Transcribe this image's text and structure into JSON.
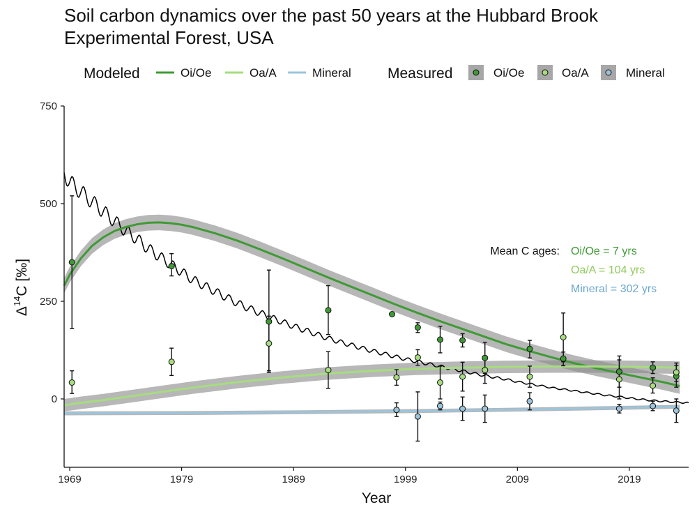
{
  "chart_data": {
    "type": "line",
    "title_line1": "Soil carbon dynamics over the past 50 years at the Hubbard Brook",
    "title_line2": "Experimental Forest, USA",
    "xlabel": "Year",
    "ylabel_main": "Δ",
    "ylabel_sup": "14",
    "ylabel_rest": "C [‰]",
    "xlim": [
      1968.5,
      2024.3
    ],
    "ylim": [
      -175,
      750
    ],
    "x_ticks": [
      1969,
      1979,
      1989,
      1999,
      2009,
      2019
    ],
    "y_ticks": [
      0,
      250,
      500,
      750
    ],
    "grid": false,
    "legend": {
      "placement": "top",
      "modeled_title": "Modeled",
      "measured_title": "Measured",
      "items": [
        "Oi/Oe",
        "Oa/A",
        "Mineral"
      ]
    },
    "colors": {
      "Oi/Oe": "#3f9a35",
      "Oa/A": "#a6dd7f",
      "Mineral": "#9cc4dc",
      "band": "#8a8a8a",
      "atmosphere": "#000000",
      "anno_label": "#111111",
      "anno_oioe": "#3f9a35",
      "anno_oaa": "#8fcc5c",
      "anno_mineral": "#6ea8cf"
    },
    "annotation": {
      "label": "Mean C ages:",
      "oioe": "Oi/Oe = 7 yrs",
      "oaa": "Oa/A = 104 yrs",
      "mineral": "Mineral = 302 yrs"
    },
    "atmosphere": {
      "x": [
        1968.5,
        1969,
        1970,
        1971,
        1972,
        1973,
        1974,
        1975,
        1976,
        1977,
        1978,
        1979,
        1980,
        1981,
        1982,
        1983,
        1984,
        1985,
        1986,
        1987,
        1988,
        1989,
        1990,
        1991,
        1992,
        1993,
        1994,
        1995,
        1996,
        1997,
        1998,
        1999,
        2000,
        2001,
        2002,
        2003,
        2004,
        2005,
        2006,
        2007,
        2008,
        2009,
        2010,
        2011,
        2012,
        2013,
        2014,
        2015,
        2016,
        2017,
        2018,
        2019,
        2020,
        2021,
        2022,
        2023,
        2024.3
      ],
      "y": [
        580,
        555,
        530,
        505,
        480,
        455,
        430,
        410,
        385,
        365,
        345,
        325,
        305,
        290,
        275,
        260,
        245,
        232,
        220,
        208,
        197,
        186,
        176,
        166,
        156,
        147,
        139,
        131,
        123,
        116,
        109,
        102,
        96,
        90,
        84,
        78,
        72,
        66,
        60,
        55,
        50,
        44,
        39,
        34,
        29,
        25,
        21,
        17,
        13,
        9,
        6,
        2,
        -1,
        -4,
        -6,
        -8,
        -10
      ]
    },
    "series_modeled": [
      {
        "name": "Oi/Oe",
        "x": [
          1968.5,
          1969,
          1970,
          1971,
          1972,
          1973,
          1974,
          1975,
          1976,
          1977,
          1978,
          1979,
          1980,
          1981,
          1982,
          1984,
          1986,
          1988,
          1990,
          1992,
          1994,
          1996,
          1998,
          2000,
          2002,
          2004,
          2006,
          2008,
          2010,
          2012,
          2014,
          2016,
          2018,
          2020,
          2022,
          2023.5
        ],
        "y": [
          290,
          318,
          360,
          392,
          414,
          430,
          440,
          447,
          451,
          452,
          450,
          446,
          440,
          432,
          424,
          405,
          383,
          360,
          336,
          312,
          289,
          266,
          243,
          221,
          200,
          180,
          160,
          140,
          123,
          107,
          92,
          79,
          67,
          55,
          43,
          33
        ],
        "band": 20
      },
      {
        "name": "Oa/A",
        "x": [
          1968.5,
          1970,
          1972,
          1974,
          1976,
          1978,
          1980,
          1984,
          1988,
          1992,
          1996,
          2000,
          2004,
          2008,
          2012,
          2016,
          2020,
          2023.5
        ],
        "y": [
          -16,
          -10,
          -3,
          5,
          13,
          21,
          29,
          43,
          55,
          65,
          72,
          77,
          80,
          82,
          83,
          83,
          82,
          80
        ],
        "band": 16
      },
      {
        "name": "Mineral",
        "x": [
          1968.5,
          1980,
          1990,
          2000,
          2010,
          2016,
          2020,
          2023.5
        ],
        "y": [
          -37,
          -36,
          -34,
          -31,
          -27,
          -24,
          -22,
          -20
        ],
        "band": 5
      }
    ],
    "series_measured": [
      {
        "name": "Oi/Oe",
        "points": [
          {
            "x": 1969.2,
            "y": 350,
            "err_lo": 180,
            "err_hi": 520
          },
          {
            "x": 1978.1,
            "y": 340,
            "err_lo": 315,
            "err_hi": 372
          },
          {
            "x": 1986.8,
            "y": 198,
            "err_lo": 68,
            "err_hi": 330
          },
          {
            "x": 1992.1,
            "y": 227,
            "err_lo": 165,
            "err_hi": 290
          },
          {
            "x": 1997.8,
            "y": 217,
            "err_lo": null,
            "err_hi": null
          },
          {
            "x": 2000.1,
            "y": 183,
            "err_lo": 170,
            "err_hi": 195
          },
          {
            "x": 2002.1,
            "y": 152,
            "err_lo": 118,
            "err_hi": 186
          },
          {
            "x": 2004.1,
            "y": 150,
            "err_lo": 133,
            "err_hi": 167
          },
          {
            "x": 2006.1,
            "y": 105,
            "err_lo": 65,
            "err_hi": 145
          },
          {
            "x": 2010.1,
            "y": 128,
            "err_lo": 105,
            "err_hi": 150
          },
          {
            "x": 2013.1,
            "y": 103,
            "err_lo": 85,
            "err_hi": 120
          },
          {
            "x": 2018.1,
            "y": 70,
            "err_lo": 30,
            "err_hi": 110
          },
          {
            "x": 2021.1,
            "y": 80,
            "err_lo": 65,
            "err_hi": 95
          },
          {
            "x": 2023.2,
            "y": 58,
            "err_lo": 30,
            "err_hi": 86
          }
        ]
      },
      {
        "name": "Oa/A",
        "points": [
          {
            "x": 1969.2,
            "y": 42,
            "err_lo": 14,
            "err_hi": 72
          },
          {
            "x": 1978.1,
            "y": 95,
            "err_lo": 60,
            "err_hi": 130
          },
          {
            "x": 1986.8,
            "y": 142,
            "err_lo": 72,
            "err_hi": 212
          },
          {
            "x": 1992.1,
            "y": 74,
            "err_lo": 27,
            "err_hi": 121
          },
          {
            "x": 1998.2,
            "y": 55,
            "err_lo": 35,
            "err_hi": 75
          },
          {
            "x": 2000.1,
            "y": 106,
            "err_lo": 86,
            "err_hi": 126
          },
          {
            "x": 2002.1,
            "y": 42,
            "err_lo": 0,
            "err_hi": 84
          },
          {
            "x": 2004.1,
            "y": 57,
            "err_lo": 20,
            "err_hi": 94
          },
          {
            "x": 2006.1,
            "y": 74,
            "err_lo": 40,
            "err_hi": 110
          },
          {
            "x": 2010.1,
            "y": 57,
            "err_lo": 30,
            "err_hi": 84
          },
          {
            "x": 2013.1,
            "y": 158,
            "err_lo": 95,
            "err_hi": 220
          },
          {
            "x": 2018.1,
            "y": 50,
            "err_lo": 0,
            "err_hi": 100
          },
          {
            "x": 2021.1,
            "y": 34,
            "err_lo": 15,
            "err_hi": 54
          },
          {
            "x": 2023.2,
            "y": 68,
            "err_lo": 45,
            "err_hi": 92
          }
        ]
      },
      {
        "name": "Mineral",
        "points": [
          {
            "x": 1998.2,
            "y": -28,
            "err_lo": -45,
            "err_hi": -10
          },
          {
            "x": 2000.1,
            "y": -45,
            "err_lo": -108,
            "err_hi": 18
          },
          {
            "x": 2002.1,
            "y": -18,
            "err_lo": -28,
            "err_hi": -8
          },
          {
            "x": 2004.1,
            "y": -25,
            "err_lo": -55,
            "err_hi": 5
          },
          {
            "x": 2006.1,
            "y": -25,
            "err_lo": -60,
            "err_hi": 10
          },
          {
            "x": 2010.1,
            "y": -6,
            "err_lo": -28,
            "err_hi": 16
          },
          {
            "x": 2018.1,
            "y": -25,
            "err_lo": -36,
            "err_hi": -14
          },
          {
            "x": 2021.1,
            "y": -18,
            "err_lo": -30,
            "err_hi": -6
          },
          {
            "x": 2023.2,
            "y": -30,
            "err_lo": -60,
            "err_hi": 0
          }
        ]
      }
    ]
  }
}
